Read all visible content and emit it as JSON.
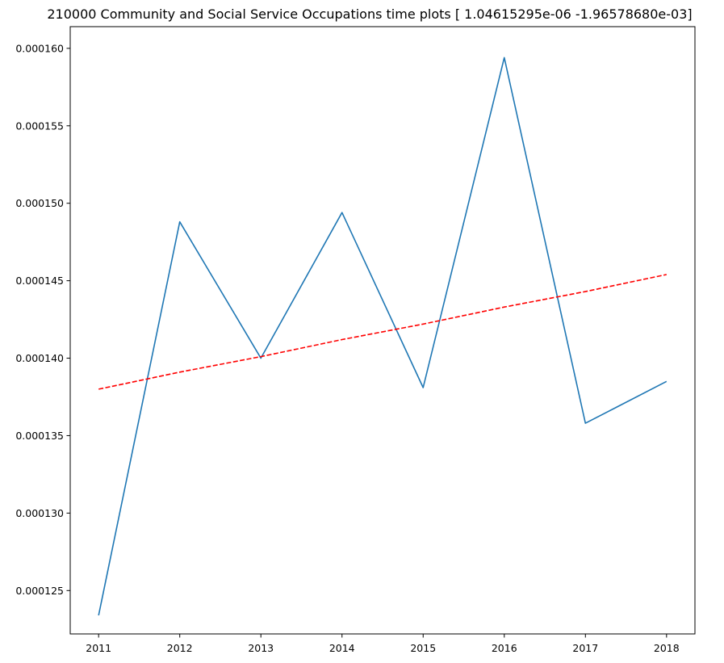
{
  "chart_data": {
    "type": "line",
    "title": "210000 Community and Social Service Occupations time plots [ 1.04615295e-06 -1.96578680e-03]",
    "xlabel": "",
    "ylabel": "",
    "x": [
      2011,
      2012,
      2013,
      2014,
      2015,
      2016,
      2017,
      2018
    ],
    "x_tick_labels": [
      "2011",
      "2012",
      "2013",
      "2014",
      "2015",
      "2016",
      "2017",
      "2018"
    ],
    "y_tick_values": [
      0.000125,
      0.00013,
      0.000135,
      0.00014,
      0.000145,
      0.00015,
      0.000155,
      0.00016
    ],
    "y_tick_labels": [
      "0.000125",
      "0.000130",
      "0.000135",
      "0.000140",
      "0.000145",
      "0.000150",
      "0.000155",
      "0.000160"
    ],
    "xlim": [
      2010.65,
      2018.35
    ],
    "ylim": [
      0.0001222,
      0.0001614
    ],
    "grid": false,
    "series": [
      {
        "values": [
          0.0001234,
          0.0001488,
          0.00014,
          0.0001494,
          0.0001381,
          0.0001594,
          0.0001358,
          0.0001385
        ],
        "color": "#1f77b4",
        "style": "solid"
      },
      {
        "values": [
          0.000138,
          0.0001391,
          0.0001401,
          0.0001412,
          0.0001422,
          0.0001433,
          0.0001443,
          0.0001454
        ],
        "color": "#ff0000",
        "style": "dashed"
      }
    ]
  }
}
